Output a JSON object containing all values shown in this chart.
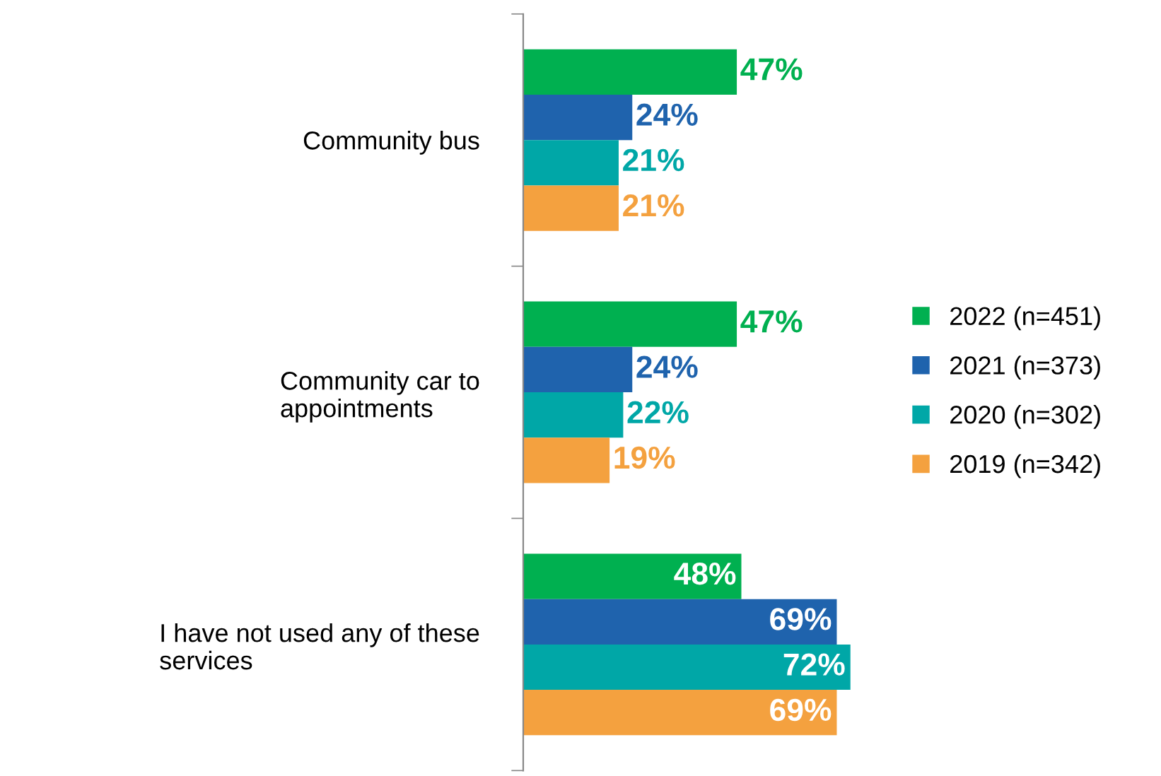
{
  "chart_data": {
    "type": "bar",
    "orientation": "horizontal",
    "categories": [
      "Community bus",
      "Community car to appointments",
      "I have not used any of these services"
    ],
    "series": [
      {
        "name": "2022 (n=451)",
        "color": "#00b050",
        "values": [
          47,
          47,
          48
        ],
        "value_labels": [
          "47%",
          "47%",
          "48%"
        ]
      },
      {
        "name": "2021 (n=373)",
        "color": "#1f63ad",
        "values": [
          24,
          24,
          69
        ],
        "value_labels": [
          "24%",
          "24%",
          "69%"
        ]
      },
      {
        "name": "2020 (n=302)",
        "color": "#00a7a7",
        "values": [
          21,
          22,
          72
        ],
        "value_labels": [
          "21%",
          "22%",
          "72%"
        ]
      },
      {
        "name": "2019 (n=342)",
        "color": "#f4a13f",
        "values": [
          21,
          19,
          69
        ],
        "value_labels": [
          "21%",
          "19%",
          "69%"
        ]
      }
    ],
    "legend": "right",
    "grid": false
  }
}
